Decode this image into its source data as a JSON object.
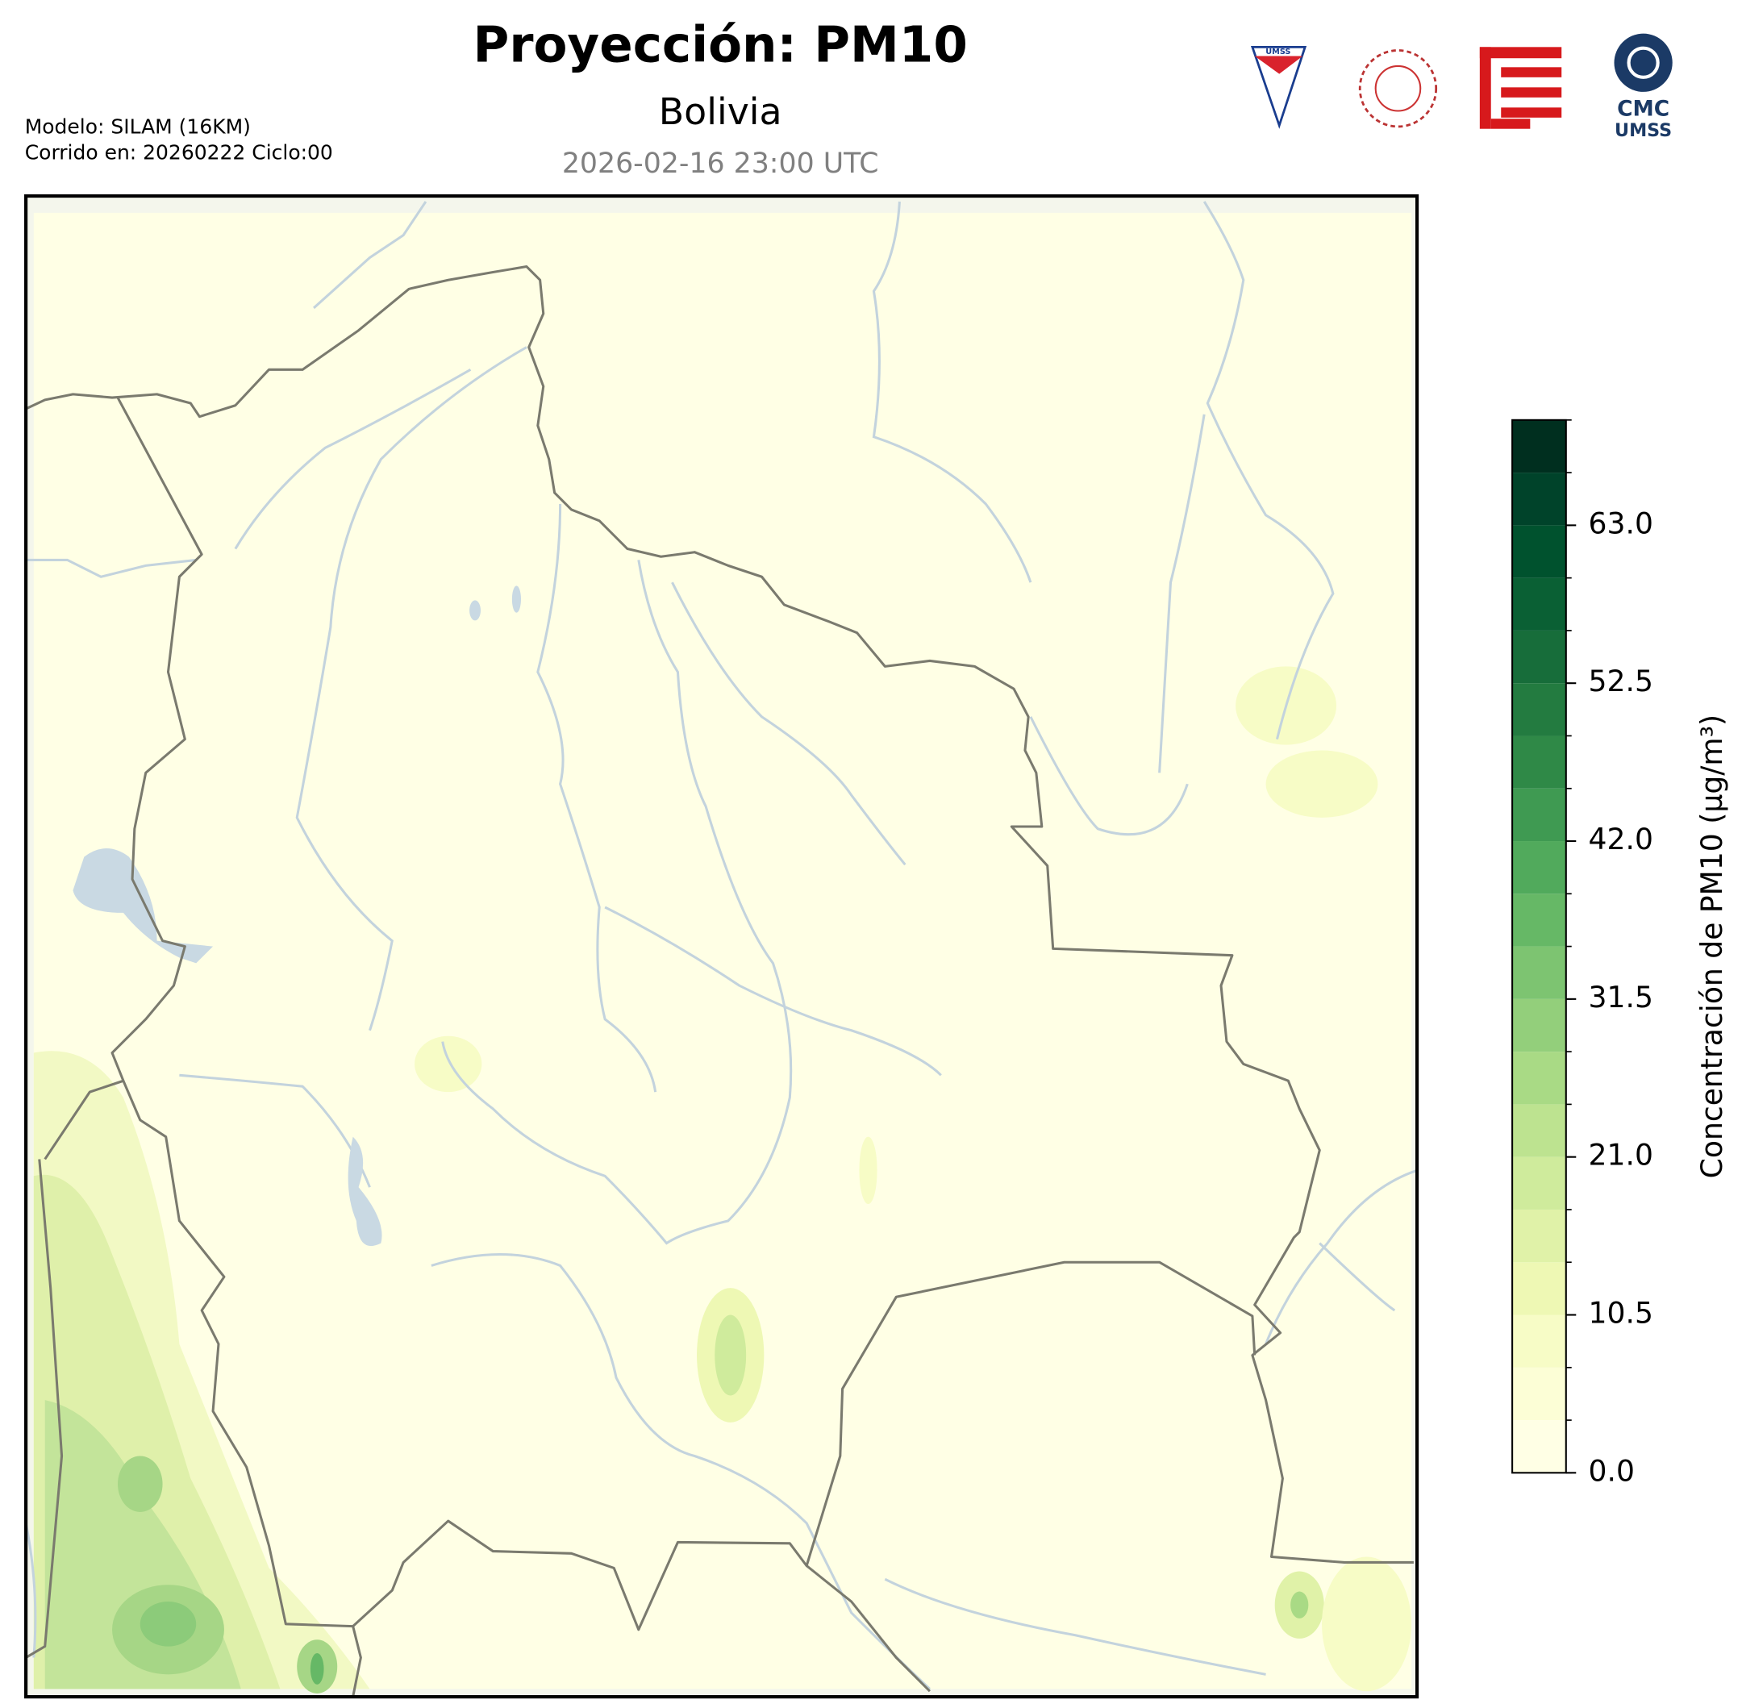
{
  "header": {
    "title": "Proyección: PM10",
    "subtitle": "Bolivia",
    "timestamp": "2026-02-16 23:00 UTC",
    "model": "Modelo: SILAM (16KM)",
    "run": "Corrido en: 20260222 Ciclo:00"
  },
  "logos": {
    "umss_badge": "UMSS",
    "cmc_top": "CMC",
    "cmc_bottom": "UMSS"
  },
  "colorbar": {
    "label": "Concentración de PM10 (µg/m³)",
    "lim": [
      0,
      70
    ],
    "ticks": [
      {
        "value": 0,
        "label": "0.0"
      },
      10.5,
      {
        "value": 21,
        "label": "21.0"
      },
      31.5,
      {
        "value": 42,
        "label": "42.0"
      },
      52.5,
      {
        "value": 63,
        "label": "63.0"
      }
    ],
    "levels": [
      0,
      3.5,
      7,
      10.5,
      14,
      17.5,
      21,
      24.5,
      28,
      31.5,
      35,
      38.5,
      42,
      45.5,
      49,
      52.5,
      56,
      59.5,
      63,
      66.5,
      70
    ],
    "colors": [
      "#ffffe5",
      "#fcfed6",
      "#f7fcc6",
      "#eef8b4",
      "#e0f2a8",
      "#cfeb9c",
      "#bde390",
      "#a9da85",
      "#93cf7b",
      "#7dc471",
      "#66b866",
      "#51aa5c",
      "#3f9a52",
      "#2f8947",
      "#237b40",
      "#176d3a",
      "#0a6034",
      "#00522e",
      "#00432a",
      "#002f1f"
    ]
  }
}
